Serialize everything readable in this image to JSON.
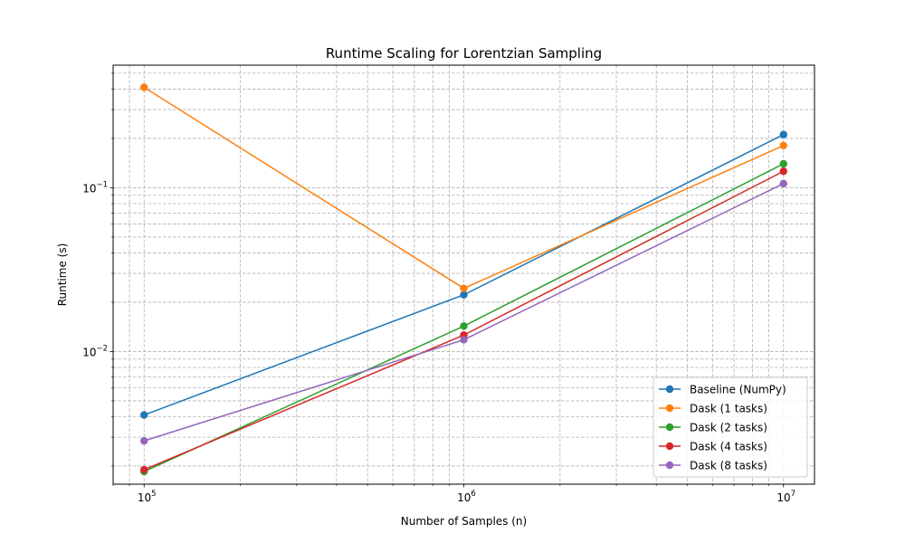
{
  "chart_data": {
    "type": "line",
    "title": "Runtime Scaling for Lorentzian Sampling",
    "xlabel": "Number of Samples (n)",
    "ylabel": "Runtime (s)",
    "xscale": "log",
    "yscale": "log",
    "x": [
      100000,
      1000000,
      10000000
    ],
    "x_tick_labels": [
      {
        "base": "10",
        "exp": "5"
      },
      {
        "base": "10",
        "exp": "6"
      },
      {
        "base": "10",
        "exp": "7"
      }
    ],
    "y_tick_labels": [
      {
        "base": "10",
        "exp": "−2"
      },
      {
        "base": "10",
        "exp": "−1"
      }
    ],
    "xlim": [
      80000,
      12500000
    ],
    "ylim": [
      0.00155,
      0.56
    ],
    "grid": "both (major and minor), dashed",
    "legend_position": "lower right",
    "series": [
      {
        "name": "Baseline (NumPy)",
        "color": "#1f77b4",
        "values": [
          0.0041,
          0.0222,
          0.211
        ]
      },
      {
        "name": "Dask (1 tasks)",
        "color": "#ff7f0e",
        "values": [
          0.41,
          0.0243,
          0.181
        ]
      },
      {
        "name": "Dask (2 tasks)",
        "color": "#2ca02c",
        "values": [
          0.00185,
          0.0143,
          0.14
        ]
      },
      {
        "name": "Dask (4 tasks)",
        "color": "#d62728",
        "values": [
          0.0019,
          0.0126,
          0.126
        ]
      },
      {
        "name": "Dask (8 tasks)",
        "color": "#9467bd",
        "values": [
          0.00285,
          0.0118,
          0.106
        ]
      }
    ]
  }
}
